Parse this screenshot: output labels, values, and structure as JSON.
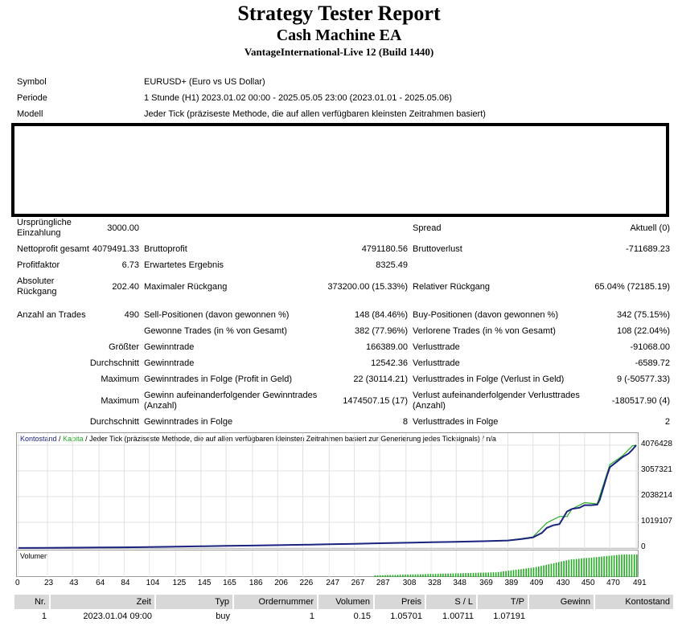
{
  "header": {
    "title": "Strategy Tester Report",
    "subtitle": "Cash Machine EA",
    "server": "VantageInternational-Live 12 (Build 1440)"
  },
  "info": {
    "symbol_label": "Symbol",
    "symbol_value": "EURUSD+ (Euro vs US Dollar)",
    "period_label": "Periode",
    "period_value": "1 Stunde (H1) 2023.01.02 00:00 - 2025.05.05 23:00 (2023.01.01 - 2025.05.06)",
    "model_label": "Modell",
    "model_value": "Jeder Tick (präziseste Methode, die auf allen verfügbaren kleinsten Zeitrahmen basiert)"
  },
  "stats": {
    "deposit_label": "Ursprüngliche Einzahlung",
    "deposit_value": "3000.00",
    "spread_label": "Spread",
    "spread_value": "Aktuell (0)",
    "netprofit_label": "Nettoprofit gesamt",
    "netprofit_value": "4079491.33",
    "grossprofit_label": "Bruttoprofit",
    "grossprofit_value": "4791180.56",
    "grossloss_label": "Bruttoverlust",
    "grossloss_value": "-711689.23",
    "pf_label": "Profitfaktor",
    "pf_value": "6.73",
    "expected_label": "Erwartetes Ergebnis",
    "expected_value": "8325.49",
    "absdd_label": "Absoluter Rückgang",
    "absdd_value": "202.40",
    "maxdd_label": "Maximaler Rückgang",
    "maxdd_value": "373200.00 (15.33%)",
    "reldd_label": "Relativer Rückgang",
    "reldd_value": "65.04% (72185.19)",
    "trades_label": "Anzahl an Trades",
    "trades_value": "490",
    "sell_label": "Sell-Positionen (davon gewonnen %)",
    "sell_value": "148 (84.46%)",
    "buy_label": "Buy-Positionen (davon gewonnen %)",
    "buy_value": "342 (75.15%)",
    "won_label": "Gewonne Trades (in % von Gesamt)",
    "won_value": "382 (77.96%)",
    "lost_label": "Verlorene Trades (in % von Gesamt)",
    "lost_value": "108 (22.04%)",
    "largest_label": "Größter",
    "largest_win_label": "Gewinntrade",
    "largest_win_value": "166389.00",
    "largest_loss_label": "Verlusttrade",
    "largest_loss_value": "-91068.00",
    "average_label": "Durchschnitt",
    "avg_win_label": "Gewinntrade",
    "avg_win_value": "12542.36",
    "avg_loss_label": "Verlusttrade",
    "avg_loss_value": "-6589.72",
    "max_label": "Maximum",
    "max_consec_win_label": "Gewinntrades in Folge (Profit in Geld)",
    "max_consec_win_value": "22 (30114.21)",
    "max_consec_loss_label": "Verlusttrades in Folge (Verlust in Geld)",
    "max_consec_loss_value": "9 (-50577.33)",
    "max2_label": "Maximum",
    "max_profit_label": "Gewinn aufeinanderfolgender Gewinntrades (Anzahl)",
    "max_profit_value": "1474507.15 (17)",
    "max_loss_label": "Verlust aufeinanderfolgender Verlusttrades (Anzahl)",
    "max_loss_value": "-180517.90 (4)",
    "average2_label": "Durchschnitt",
    "avg_consec_win_label": "Gewinntrades in Folge",
    "avg_consec_win_value": "8",
    "avg_consec_loss_label": "Verlusttrades in Folge",
    "avg_consec_loss_value": "2"
  },
  "chart_legend": {
    "balance": "Kontostand",
    "sep1": " / ",
    "equity": "Kapita",
    "rest": " / Jeder Tick (präziseste Methode, die auf allen verfügbaren kleinsten Zeitrahmen basiert zur Generierung jedes Ticksignals) / n/a",
    "volume": "Volumen"
  },
  "chart_data": {
    "type": "line",
    "title": "",
    "xlabel": "",
    "ylabel": "",
    "x_ticks": [
      "0",
      "23",
      "43",
      "64",
      "84",
      "104",
      "125",
      "145",
      "165",
      "186",
      "206",
      "226",
      "247",
      "267",
      "287",
      "308",
      "328",
      "348",
      "369",
      "389",
      "409",
      "430",
      "450",
      "470",
      "491"
    ],
    "y_ticks": [
      "4076428",
      "3057321",
      "2038214",
      "1019107",
      "0"
    ],
    "xlim": [
      0,
      491
    ],
    "ylim": [
      0,
      4300000
    ],
    "colors": {
      "balance": "#1a237e",
      "equity": "#22aa22",
      "volume": "#22aa22"
    },
    "series": [
      {
        "name": "Kontostand",
        "x": [
          0,
          23,
          43,
          64,
          84,
          104,
          125,
          145,
          165,
          186,
          206,
          226,
          247,
          267,
          287,
          308,
          328,
          348,
          369,
          389,
          400,
          409,
          416,
          420,
          425,
          430,
          436,
          440,
          446,
          450,
          455,
          460,
          462,
          465,
          468,
          470,
          475,
          480,
          485,
          488,
          491
        ],
        "y": [
          3000,
          8000,
          15000,
          22000,
          30000,
          40000,
          55000,
          70000,
          85000,
          100000,
          115000,
          130000,
          150000,
          170000,
          190000,
          210000,
          230000,
          250000,
          270000,
          300000,
          360000,
          420000,
          600000,
          800000,
          900000,
          950000,
          1450000,
          1550000,
          1600000,
          1700000,
          1700000,
          1720000,
          1900000,
          2400000,
          2900000,
          3200000,
          3400000,
          3600000,
          3750000,
          3900000,
          4076428
        ]
      },
      {
        "name": "Kapita",
        "x": [
          0,
          104,
          206,
          308,
          389,
          409,
          420,
          430,
          436,
          440,
          450,
          460,
          470,
          480,
          488,
          491
        ],
        "y": [
          3000,
          40000,
          115000,
          210000,
          300000,
          440000,
          1000000,
          1250000,
          1250000,
          1550000,
          1800000,
          1750000,
          3300000,
          3650000,
          4050000,
          4076428
        ]
      }
    ],
    "volume_x_ticks": [
      "0",
      "23",
      "43",
      "64",
      "84",
      "104",
      "125",
      "145",
      "165",
      "186",
      "206",
      "226",
      "247",
      "267",
      "287",
      "308",
      "328",
      "348",
      "369",
      "389",
      "409",
      "430",
      "450",
      "470",
      "491"
    ]
  },
  "table": {
    "headers": [
      "Nr.",
      "Zeit",
      "Typ",
      "Ordernummer",
      "Volumen",
      "Preis",
      "S / L",
      "T/P",
      "Gewinn",
      "Kontostand"
    ],
    "rows": [
      [
        "1",
        "2023.01.04 09:00",
        "buy",
        "1",
        "0.15",
        "1.05701",
        "1.00711",
        "1.07191",
        "",
        ""
      ]
    ]
  }
}
